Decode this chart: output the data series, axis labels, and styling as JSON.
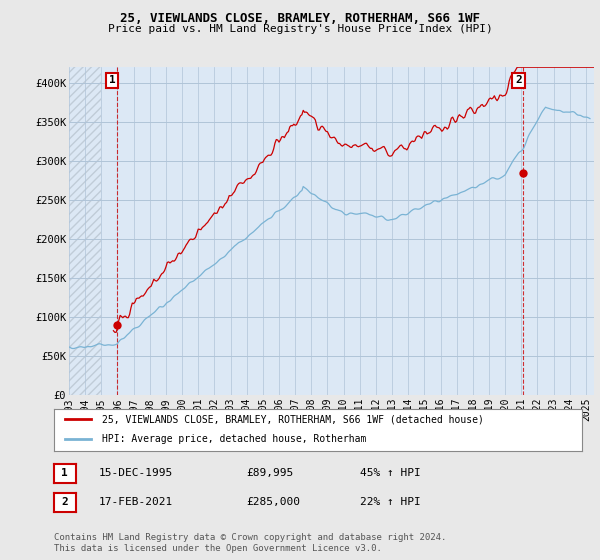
{
  "title": "25, VIEWLANDS CLOSE, BRAMLEY, ROTHERHAM, S66 1WF",
  "subtitle": "Price paid vs. HM Land Registry's House Price Index (HPI)",
  "background_color": "#e8e8e8",
  "plot_bg_color": "#dce8f5",
  "hatch_color": "#c0ccd8",
  "grid_color": "#b0c4d8",
  "ylim": [
    0,
    420000
  ],
  "yticks": [
    0,
    50000,
    100000,
    150000,
    200000,
    250000,
    300000,
    350000,
    400000
  ],
  "ytick_labels": [
    "£0",
    "£50K",
    "£100K",
    "£150K",
    "£200K",
    "£250K",
    "£300K",
    "£350K",
    "£400K"
  ],
  "xlim_start": 1993.0,
  "xlim_end": 2025.5,
  "xticks": [
    1993,
    1994,
    1995,
    1996,
    1997,
    1998,
    1999,
    2000,
    2001,
    2002,
    2003,
    2004,
    2005,
    2006,
    2007,
    2008,
    2009,
    2010,
    2011,
    2012,
    2013,
    2014,
    2015,
    2016,
    2017,
    2018,
    2019,
    2020,
    2021,
    2022,
    2023,
    2024,
    2025
  ],
  "hpi_color": "#7ab3d4",
  "price_color": "#cc0000",
  "annotation_color": "#cc0000",
  "sale1_x": 1995.96,
  "sale1_y": 89995,
  "sale2_x": 2021.12,
  "sale2_y": 285000,
  "sale1_label": "1",
  "sale2_label": "2",
  "legend_label1": "25, VIEWLANDS CLOSE, BRAMLEY, ROTHERHAM, S66 1WF (detached house)",
  "legend_label2": "HPI: Average price, detached house, Rotherham",
  "table_row1_num": "1",
  "table_row1_date": "15-DEC-1995",
  "table_row1_price": "£89,995",
  "table_row1_hpi": "45% ↑ HPI",
  "table_row2_num": "2",
  "table_row2_date": "17-FEB-2021",
  "table_row2_price": "£285,000",
  "table_row2_hpi": "22% ↑ HPI",
  "footer": "Contains HM Land Registry data © Crown copyright and database right 2024.\nThis data is licensed under the Open Government Licence v3.0."
}
